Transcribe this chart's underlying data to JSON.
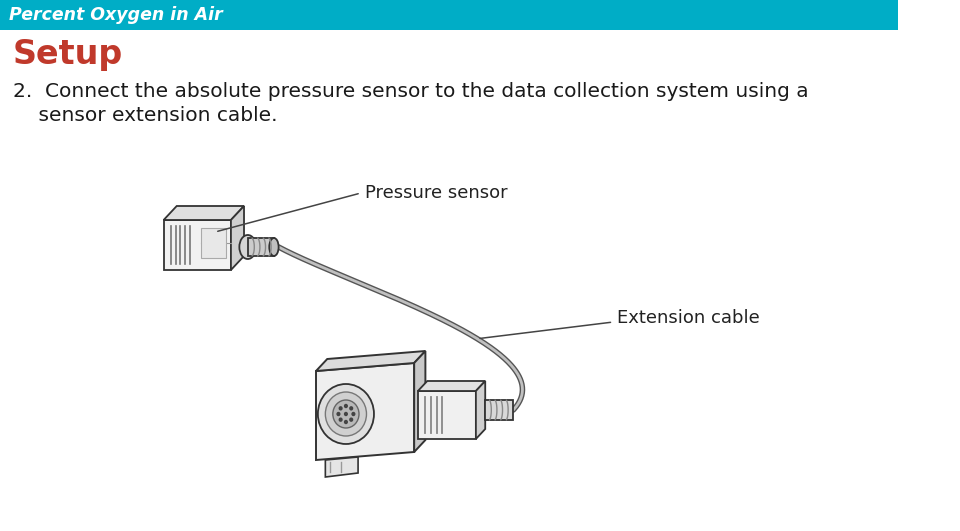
{
  "title_bar_text": "Percent Oxygen in Air",
  "title_bar_color": "#00adc6",
  "title_bar_text_color": "#ffffff",
  "title_bar_height": 30,
  "setup_text": "Setup",
  "setup_color": "#c0392b",
  "setup_fontsize": 24,
  "step_line1": "2.  Connect the absolute pressure sensor to the data collection system using a",
  "step_line2": "    sensor extension cable.",
  "step_text_color": "#1a1a1a",
  "step_fontsize": 14.5,
  "label_pressure": "Pressure sensor",
  "label_extension": "Extension cable",
  "label_color": "#222222",
  "label_fontsize": 13,
  "bg_color": "#ffffff",
  "line_color": "#333333",
  "fill_light": "#f0f0f0",
  "fill_mid": "#d8d8d8",
  "fill_dark": "#b0b0b0"
}
